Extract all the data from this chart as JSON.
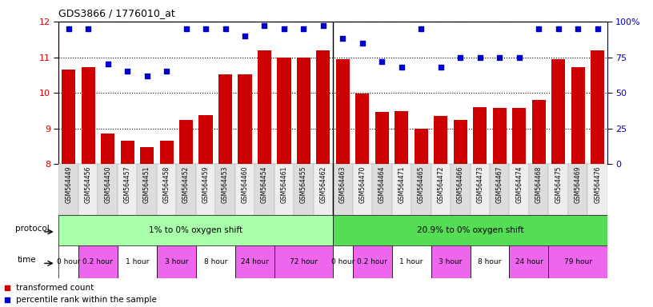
{
  "title": "GDS3866 / 1776010_at",
  "samples": [
    "GSM564449",
    "GSM564456",
    "GSM564450",
    "GSM564457",
    "GSM564451",
    "GSM564458",
    "GSM564452",
    "GSM564459",
    "GSM564453",
    "GSM564460",
    "GSM564454",
    "GSM564461",
    "GSM564455",
    "GSM564462",
    "GSM564463",
    "GSM564470",
    "GSM564464",
    "GSM564471",
    "GSM564465",
    "GSM564472",
    "GSM564466",
    "GSM564473",
    "GSM564467",
    "GSM564474",
    "GSM564468",
    "GSM564475",
    "GSM564469",
    "GSM564476"
  ],
  "bar_values": [
    10.65,
    10.72,
    8.85,
    8.65,
    8.48,
    8.65,
    9.25,
    9.38,
    10.52,
    10.52,
    11.18,
    11.0,
    11.0,
    11.18,
    10.95,
    9.98,
    9.46,
    9.48,
    9.0,
    9.35,
    9.25,
    9.6,
    9.58,
    9.58,
    9.8,
    10.95,
    10.72,
    11.18
  ],
  "dot_values": [
    95,
    95,
    70,
    65,
    62,
    65,
    95,
    95,
    95,
    90,
    97,
    95,
    95,
    97,
    88,
    85,
    72,
    68,
    95,
    68,
    75,
    75,
    75,
    75,
    95,
    95,
    95,
    95
  ],
  "ylim_left": [
    8,
    12
  ],
  "ylim_right": [
    0,
    100
  ],
  "yticks_left": [
    8,
    9,
    10,
    11,
    12
  ],
  "yticks_right": [
    0,
    25,
    50,
    75,
    100
  ],
  "bar_color": "#cc0000",
  "dot_color": "#0000cc",
  "protocol_groups": [
    {
      "label": "1% to 0% oxygen shift",
      "start": 0,
      "end": 14,
      "color": "#aaffaa"
    },
    {
      "label": "20.9% to 0% oxygen shift",
      "start": 14,
      "end": 28,
      "color": "#55dd55"
    }
  ],
  "time_groups": [
    {
      "label": "0 hour",
      "color": "#ffffff",
      "start": 0,
      "end": 1
    },
    {
      "label": "0.2 hour",
      "color": "#ee66ee",
      "start": 1,
      "end": 3
    },
    {
      "label": "1 hour",
      "color": "#ffffff",
      "start": 3,
      "end": 5
    },
    {
      "label": "3 hour",
      "color": "#ee66ee",
      "start": 5,
      "end": 7
    },
    {
      "label": "8 hour",
      "color": "#ffffff",
      "start": 7,
      "end": 9
    },
    {
      "label": "24 hour",
      "color": "#ee66ee",
      "start": 9,
      "end": 11
    },
    {
      "label": "72 hour",
      "color": "#ee66ee",
      "start": 11,
      "end": 14
    },
    {
      "label": "0 hour",
      "color": "#ffffff",
      "start": 14,
      "end": 15
    },
    {
      "label": "0.2 hour",
      "color": "#ee66ee",
      "start": 15,
      "end": 17
    },
    {
      "label": "1 hour",
      "color": "#ffffff",
      "start": 17,
      "end": 19
    },
    {
      "label": "3 hour",
      "color": "#ee66ee",
      "start": 19,
      "end": 21
    },
    {
      "label": "8 hour",
      "color": "#ffffff",
      "start": 21,
      "end": 23
    },
    {
      "label": "24 hour",
      "color": "#ee66ee",
      "start": 23,
      "end": 25
    },
    {
      "label": "79 hour",
      "color": "#ee66ee",
      "start": 25,
      "end": 28
    }
  ],
  "legend_bar_label": "transformed count",
  "legend_dot_label": "percentile rank within the sample",
  "label_bg_even": "#dddddd",
  "label_bg_odd": "#eeeeee"
}
